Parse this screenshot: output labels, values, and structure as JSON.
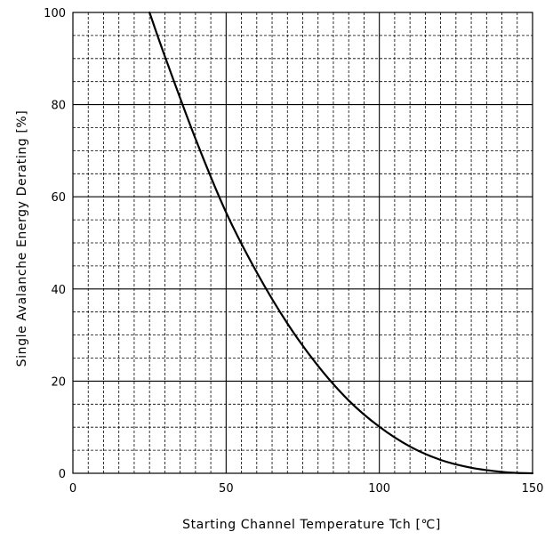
{
  "chart_data": {
    "type": "line",
    "title": "",
    "xlabel": "Starting Channel Temperature Tch [℃]",
    "ylabel": "Single Avalanche Energy Derating [%]",
    "xlim": [
      0,
      150
    ],
    "ylim": [
      0,
      100
    ],
    "x_ticks": [
      "0",
      "50",
      "100",
      "150"
    ],
    "y_ticks": [
      "0",
      "20",
      "40",
      "60",
      "80",
      "100"
    ],
    "grid": {
      "major": true,
      "minor": "dashed"
    },
    "series": [
      {
        "x": [
          25,
          30,
          40,
          50,
          60,
          70,
          80,
          90,
          100,
          110,
          120,
          130,
          140,
          145,
          150
        ],
        "y": [
          100,
          90.5,
          72.6,
          56.6,
          43.6,
          32.5,
          23.3,
          15.8,
          10.1,
          5.8,
          2.9,
          1.2,
          0.3,
          0.08,
          0
        ]
      }
    ],
    "colors": {
      "line": "#000000",
      "grid": "#000000",
      "background": "#ffffff"
    }
  }
}
